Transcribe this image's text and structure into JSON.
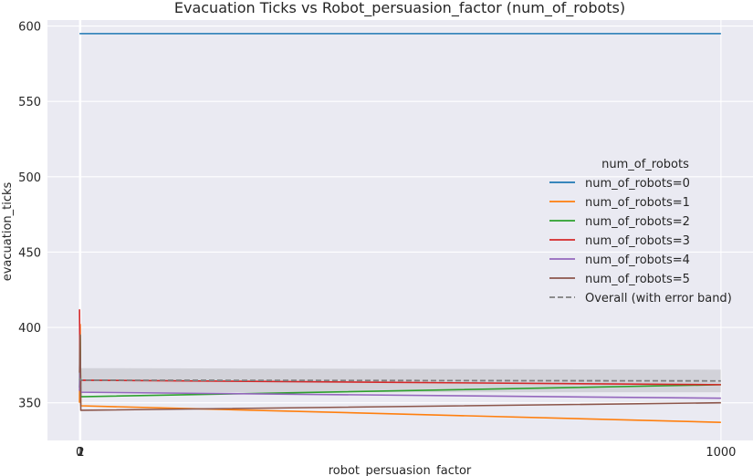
{
  "chart_data": {
    "type": "line",
    "title": "Evacuation Ticks vs Robot_persuasion_factor (num_of_robots)",
    "xlabel": "robot_persuasion_factor",
    "ylabel": "evacuation_ticks",
    "xlim": [
      -50,
      1050
    ],
    "ylim": [
      325,
      604
    ],
    "x_ticks": [
      0,
      1,
      2,
      1000
    ],
    "x_tick_labels": [
      "0",
      "1",
      "2",
      "1000"
    ],
    "y_ticks": [
      350,
      400,
      450,
      500,
      550,
      600
    ],
    "grid": true,
    "legend": {
      "title": "num_of_robots",
      "placement": "center-right"
    },
    "series": [
      {
        "name": "num_of_robots=0",
        "color": "#1f77b4",
        "x": [
          0,
          1,
          2,
          1000
        ],
        "y": [
          595,
          595,
          595,
          595
        ]
      },
      {
        "name": "num_of_robots=1",
        "color": "#ff7f0e",
        "x": [
          0,
          1,
          2,
          1000
        ],
        "y": [
          350,
          402,
          348,
          337
        ]
      },
      {
        "name": "num_of_robots=2",
        "color": "#2ca02c",
        "x": [
          0,
          1,
          2,
          1000
        ],
        "y": [
          360,
          395,
          354,
          362
        ]
      },
      {
        "name": "num_of_robots=3",
        "color": "#d62728",
        "x": [
          0,
          1,
          2,
          1000
        ],
        "y": [
          412,
          358,
          365,
          362
        ]
      },
      {
        "name": "num_of_robots=4",
        "color": "#9467bd",
        "x": [
          0,
          1,
          2,
          1000
        ],
        "y": [
          358,
          380,
          357,
          353
        ]
      },
      {
        "name": "num_of_robots=5",
        "color": "#8c564b",
        "x": [
          0,
          1,
          2,
          1000
        ],
        "y": [
          370,
          395,
          345,
          350
        ]
      },
      {
        "name": "Overall (with error band)",
        "color": "#7f7f7f",
        "dashed": true,
        "x": [
          0,
          1,
          2,
          1000
        ],
        "y": [
          365,
          366,
          365,
          364.5
        ],
        "band_lower": [
          357,
          358,
          357,
          357
        ],
        "band_upper": [
          373,
          374,
          373,
          372
        ]
      }
    ]
  }
}
